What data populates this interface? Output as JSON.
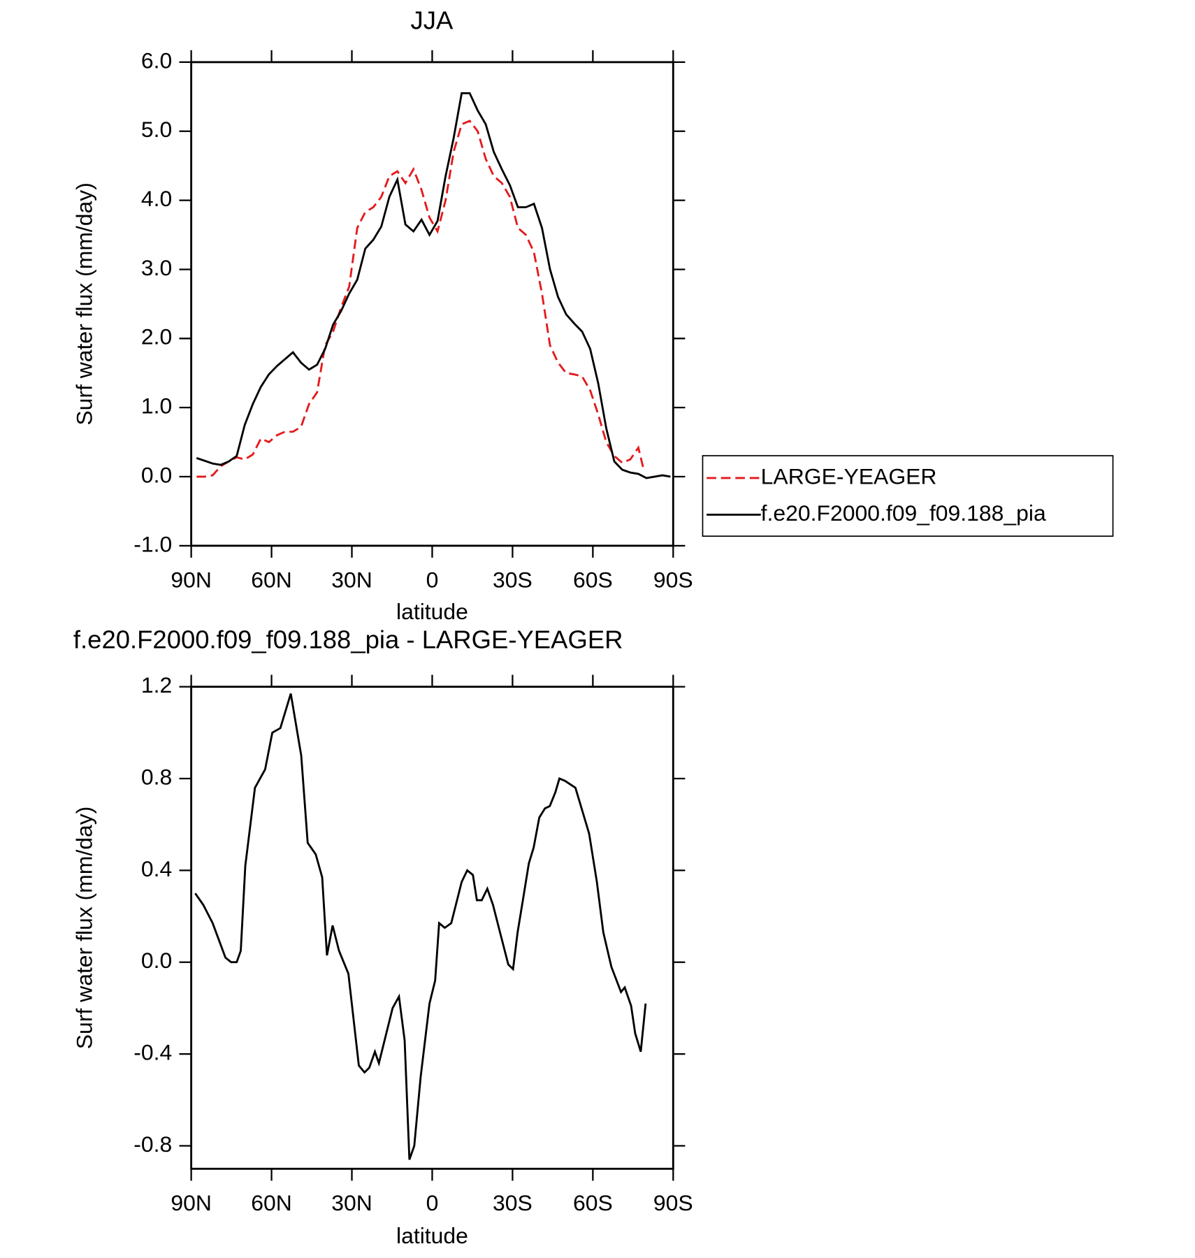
{
  "chart_data": [
    {
      "type": "line",
      "title": "JJA",
      "xlabel": "latitude",
      "ylabel": "Surf water flux (mm/day)",
      "xlim": [
        90,
        -90
      ],
      "xticks": [
        {
          "value": 90,
          "label": "90N"
        },
        {
          "value": 60,
          "label": "60N"
        },
        {
          "value": 30,
          "label": "30N"
        },
        0,
        {
          "value": -30,
          "label": "30S"
        },
        {
          "value": -60,
          "label": "60S"
        },
        {
          "value": -90,
          "label": "90S"
        }
      ],
      "ylim": [
        -1,
        6
      ],
      "yticks": [
        {
          "value": -1,
          "label": "-1.0"
        },
        {
          "value": 0,
          "label": "0.0"
        },
        {
          "value": 1,
          "label": "1.0"
        },
        {
          "value": 2,
          "label": "2.0"
        },
        {
          "value": 3,
          "label": "3.0"
        },
        {
          "value": 4,
          "label": "4.0"
        },
        {
          "value": 5,
          "label": "5.0"
        },
        {
          "value": 6,
          "label": "6.0"
        }
      ],
      "grid": false,
      "legend": "right",
      "series": [
        {
          "name": "LARGE-YEAGER",
          "color": "#e41a1c",
          "dash": "dashed",
          "x": [
            88,
            85,
            82,
            79,
            76,
            73,
            70,
            67,
            64,
            61,
            58,
            55,
            52,
            49,
            46,
            43,
            40,
            37,
            34,
            31,
            28,
            25,
            22,
            19,
            16,
            13,
            10,
            7,
            4,
            1,
            -2,
            -5,
            -8,
            -11,
            -14,
            -17,
            -20,
            -23,
            -26,
            -29,
            -32,
            -35,
            -38,
            -41,
            -44,
            -47,
            -50,
            -53,
            -56,
            -59,
            -62,
            -65,
            -68,
            -71,
            -74,
            -77,
            -79
          ],
          "values": [
            0,
            0,
            0.02,
            0.15,
            0.22,
            0.28,
            0.25,
            0.32,
            0.55,
            0.5,
            0.6,
            0.65,
            0.65,
            0.72,
            1.05,
            1.22,
            1.9,
            2.1,
            2.45,
            2.75,
            3.6,
            3.83,
            3.9,
            4.05,
            4.35,
            4.42,
            4.25,
            4.45,
            4.15,
            3.75,
            3.55,
            4.0,
            4.7,
            5.1,
            5.15,
            5.0,
            4.6,
            4.35,
            4.25,
            4.05,
            3.6,
            3.5,
            3.25,
            2.65,
            1.9,
            1.65,
            1.5,
            1.48,
            1.45,
            1.25,
            0.9,
            0.5,
            0.3,
            0.2,
            0.25,
            0.42,
            0.1
          ]
        },
        {
          "name": "f.e20.F2000.f09_f09.188_pia",
          "color": "#000000",
          "dash": "solid",
          "x": [
            88,
            85,
            82,
            79,
            76,
            73,
            70,
            67,
            64,
            61,
            58,
            55,
            52,
            49,
            46,
            43,
            40,
            37,
            34,
            31,
            28,
            25,
            22,
            19,
            16,
            13,
            10,
            7,
            4,
            1,
            -2,
            -5,
            -8,
            -11,
            -14,
            -17,
            -20,
            -23,
            -26,
            -29,
            -32,
            -35,
            -38,
            -41,
            -44,
            -47,
            -50,
            -53,
            -56,
            -59,
            -62,
            -65,
            -68,
            -71,
            -74,
            -77,
            -80,
            -83,
            -86,
            -89
          ],
          "values": [
            0.27,
            0.23,
            0.19,
            0.17,
            0.22,
            0.3,
            0.75,
            1.05,
            1.3,
            1.48,
            1.6,
            1.7,
            1.8,
            1.65,
            1.55,
            1.62,
            1.85,
            2.2,
            2.4,
            2.65,
            2.85,
            3.3,
            3.43,
            3.62,
            4.05,
            4.3,
            3.65,
            3.55,
            3.72,
            3.5,
            3.7,
            4.35,
            4.9,
            5.55,
            5.55,
            5.3,
            5.1,
            4.7,
            4.45,
            4.22,
            3.9,
            3.9,
            3.95,
            3.6,
            3.0,
            2.6,
            2.35,
            2.22,
            2.1,
            1.85,
            1.35,
            0.7,
            0.22,
            0.1,
            0.06,
            0.04,
            -0.02,
            0.0,
            0.02,
            0.0
          ]
        }
      ]
    },
    {
      "type": "line",
      "title": "f.e20.F2000.f09_f09.188_pia - LARGE-YEAGER",
      "xlabel": "latitude",
      "ylabel": "Surf water flux (mm/day)",
      "xlim": [
        90,
        -90
      ],
      "xticks": [
        {
          "value": 90,
          "label": "90N"
        },
        {
          "value": 60,
          "label": "60N"
        },
        {
          "value": 30,
          "label": "30N"
        },
        0,
        {
          "value": -30,
          "label": "30S"
        },
        {
          "value": -60,
          "label": "60S"
        },
        {
          "value": -90,
          "label": "90S"
        }
      ],
      "ylim": [
        -0.9,
        1.2
      ],
      "yticks": [
        -0.8,
        -0.4,
        {
          "value": 0,
          "label": "0.0"
        },
        0.4,
        0.8,
        1.2
      ],
      "grid": false,
      "series": [
        {
          "color": "#000000",
          "dash": "solid",
          "x": [
            88.5,
            85.5,
            82.0,
            77.2,
            75.1,
            73.0,
            71.5,
            69.8,
            66.2,
            62.4,
            59.7,
            56.7,
            52.8,
            48.9,
            46.5,
            43.5,
            41.1,
            39.3,
            37.2,
            34.8,
            31.3,
            27.4,
            25.3,
            23.5,
            21.4,
            19.9,
            14.8,
            12.4,
            10.3,
            8.5,
            6.7,
            4.3,
            1.0,
            -1.1,
            -2.6,
            -4.7,
            -7.1,
            -11.0,
            -13.1,
            -15.2,
            -16.7,
            -18.5,
            -20.6,
            -22.7,
            -25.1,
            -28.4,
            -30.2,
            -31.9,
            -34.0,
            -36.1,
            -37.9,
            -40.0,
            -42.1,
            -43.9,
            -46.0,
            -47.5,
            -49.6,
            -53.5,
            -58.6,
            -61.5,
            -63.9,
            -66.9,
            -70.5,
            -71.9,
            -74.3,
            -75.8,
            -77.9,
            -79.7
          ],
          "values": [
            0.3,
            0.25,
            0.17,
            0.02,
            0.0,
            0.0,
            0.05,
            0.42,
            0.76,
            0.84,
            1.0,
            1.02,
            1.17,
            0.9,
            0.52,
            0.47,
            0.37,
            0.03,
            0.16,
            0.05,
            -0.05,
            -0.45,
            -0.48,
            -0.46,
            -0.39,
            -0.44,
            -0.2,
            -0.15,
            -0.34,
            -0.86,
            -0.8,
            -0.5,
            -0.18,
            -0.08,
            0.17,
            0.15,
            0.17,
            0.35,
            0.4,
            0.38,
            0.27,
            0.27,
            0.32,
            0.25,
            0.14,
            -0.01,
            -0.03,
            0.13,
            0.28,
            0.43,
            0.5,
            0.63,
            0.67,
            0.68,
            0.74,
            0.8,
            0.79,
            0.76,
            0.56,
            0.35,
            0.13,
            -0.02,
            -0.13,
            -0.11,
            -0.19,
            -0.31,
            -0.39,
            -0.18
          ]
        }
      ]
    }
  ]
}
